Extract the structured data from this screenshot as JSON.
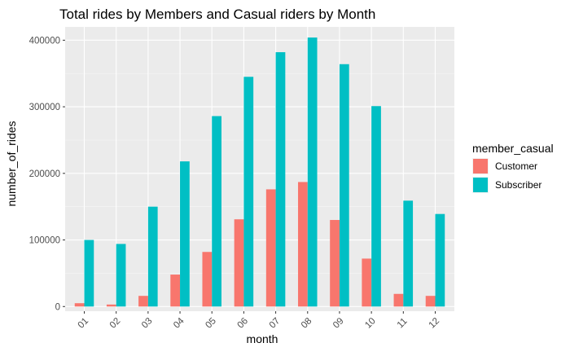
{
  "chart_data": {
    "type": "bar",
    "title": "Total rides by Members and Casual riders by Month",
    "xlabel": "month",
    "ylabel": "number_of_rides",
    "categories": [
      "01",
      "02",
      "03",
      "04",
      "05",
      "06",
      "07",
      "08",
      "09",
      "10",
      "11",
      "12"
    ],
    "series": [
      {
        "name": "Customer",
        "color": "#F8766D",
        "values": [
          5000,
          3000,
          16000,
          48000,
          82000,
          131000,
          176000,
          187000,
          130000,
          72000,
          19000,
          16000
        ]
      },
      {
        "name": "Subscriber",
        "color": "#00BFC4",
        "values": [
          100000,
          94000,
          150000,
          218000,
          286000,
          345000,
          382000,
          404000,
          364000,
          301000,
          159000,
          139000
        ]
      }
    ],
    "ylim": [
      -7000,
      420000
    ],
    "yticks": [
      0,
      100000,
      200000,
      300000,
      400000
    ],
    "ytick_labels": [
      "0",
      "100000",
      "200000",
      "300000",
      "400000"
    ],
    "legend": {
      "title": "member_casual",
      "position": "right"
    },
    "grid": true,
    "panel_background": "#EBEBEB"
  }
}
